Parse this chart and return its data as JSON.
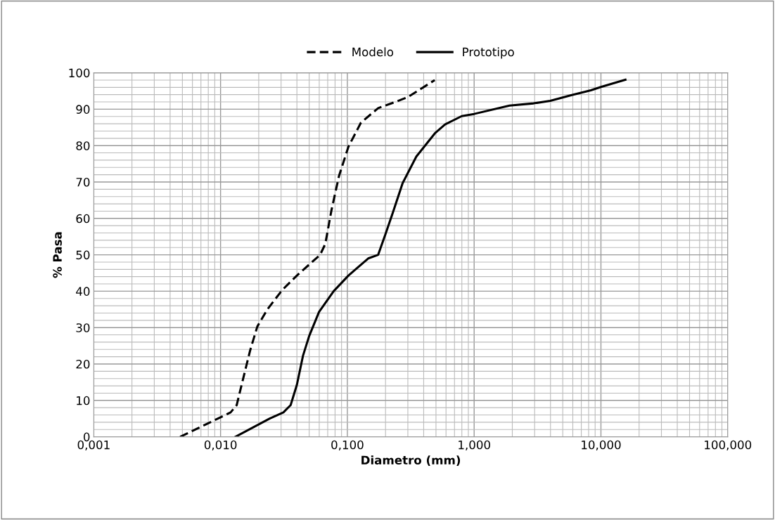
{
  "chart_data": {
    "type": "line",
    "xlabel": "Diametro (mm)",
    "ylabel": "% Pasa",
    "log": "x",
    "grid": true,
    "legend": "top",
    "xlim": [
      0.001,
      100
    ],
    "xticks": [
      {
        "value": 0.001,
        "label": "0,001"
      },
      {
        "value": 0.01,
        "label": "0,010"
      },
      {
        "value": 0.1,
        "label": "0,100"
      },
      {
        "value": 1,
        "label": "1,000"
      },
      {
        "value": 10,
        "label": "10,000"
      },
      {
        "value": 100,
        "label": "100,000"
      }
    ],
    "ylim": [
      0,
      100
    ],
    "yticks": [
      0,
      10,
      20,
      30,
      40,
      50,
      60,
      70,
      80,
      90,
      100
    ],
    "series": [
      {
        "name": "Modelo",
        "color": "#000000",
        "line_style": "dashed",
        "x": [
          0.0048,
          0.012,
          0.0134,
          0.015,
          0.0171,
          0.0195,
          0.0234,
          0.0306,
          0.04,
          0.061,
          0.067,
          0.075,
          0.086,
          0.102,
          0.128,
          0.175,
          0.239,
          0.299,
          0.489
        ],
        "values": [
          0,
          6.7,
          8.7,
          15.7,
          23.7,
          30.3,
          35,
          40.3,
          44.3,
          50,
          53,
          62.3,
          71.7,
          79.7,
          86.3,
          90.3,
          92,
          93.3,
          98
        ]
      },
      {
        "name": "Prototipo",
        "color": "#000000",
        "line_style": "solid",
        "x": [
          0.0131,
          0.0244,
          0.0313,
          0.0357,
          0.04,
          0.0447,
          0.05,
          0.0598,
          0.078,
          0.102,
          0.146,
          0.175,
          0.2,
          0.229,
          0.273,
          0.35,
          0.494,
          0.589,
          0.798,
          1.0,
          1.9,
          2.94,
          3.98,
          5.89,
          8.33,
          10,
          15.6
        ],
        "values": [
          0,
          5,
          6.7,
          8.7,
          14.3,
          22.3,
          27.7,
          34.3,
          40,
          44.3,
          49,
          50,
          55.7,
          61.7,
          69.7,
          77,
          83.5,
          85.8,
          88.1,
          88.7,
          91,
          91.6,
          92.3,
          93.9,
          95.2,
          96.1,
          98.1
        ]
      }
    ]
  }
}
